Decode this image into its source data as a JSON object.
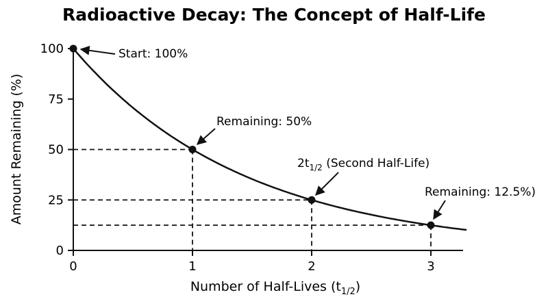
{
  "chart_data": {
    "type": "line",
    "title": "Radioactive Decay: The Concept of Half-Life",
    "xlabel": {
      "main": "Number of Half-Lives (t",
      "sub": "1/2",
      "end": ")"
    },
    "ylabel": "Amount Remaining (%)",
    "xlim": [
      0,
      3.3
    ],
    "ylim": [
      0,
      100
    ],
    "x_ticks": [
      0,
      1,
      2,
      3
    ],
    "y_ticks": [
      0,
      25,
      50,
      75,
      100
    ],
    "curve": {
      "model": "100 * 0.5^x",
      "x_start": 0,
      "x_end": 3.3
    },
    "points": [
      {
        "x": 0,
        "y": 100
      },
      {
        "x": 1,
        "y": 50
      },
      {
        "x": 2,
        "y": 25
      },
      {
        "x": 3,
        "y": 12.5
      }
    ],
    "annotations": [
      {
        "text": "Start: 100%",
        "x": 0,
        "y": 100
      },
      {
        "text": "Remaining: 50%",
        "x": 1,
        "y": 50
      },
      {
        "text_main": "2t",
        "text_sub": "1/2",
        "text_end": " (Second Half-Life)",
        "x": 2,
        "y": 25
      },
      {
        "text": "Remaining: 12.5%)",
        "x": 3,
        "y": 12.5
      }
    ],
    "grid": false,
    "guide_lines": "dashed"
  }
}
